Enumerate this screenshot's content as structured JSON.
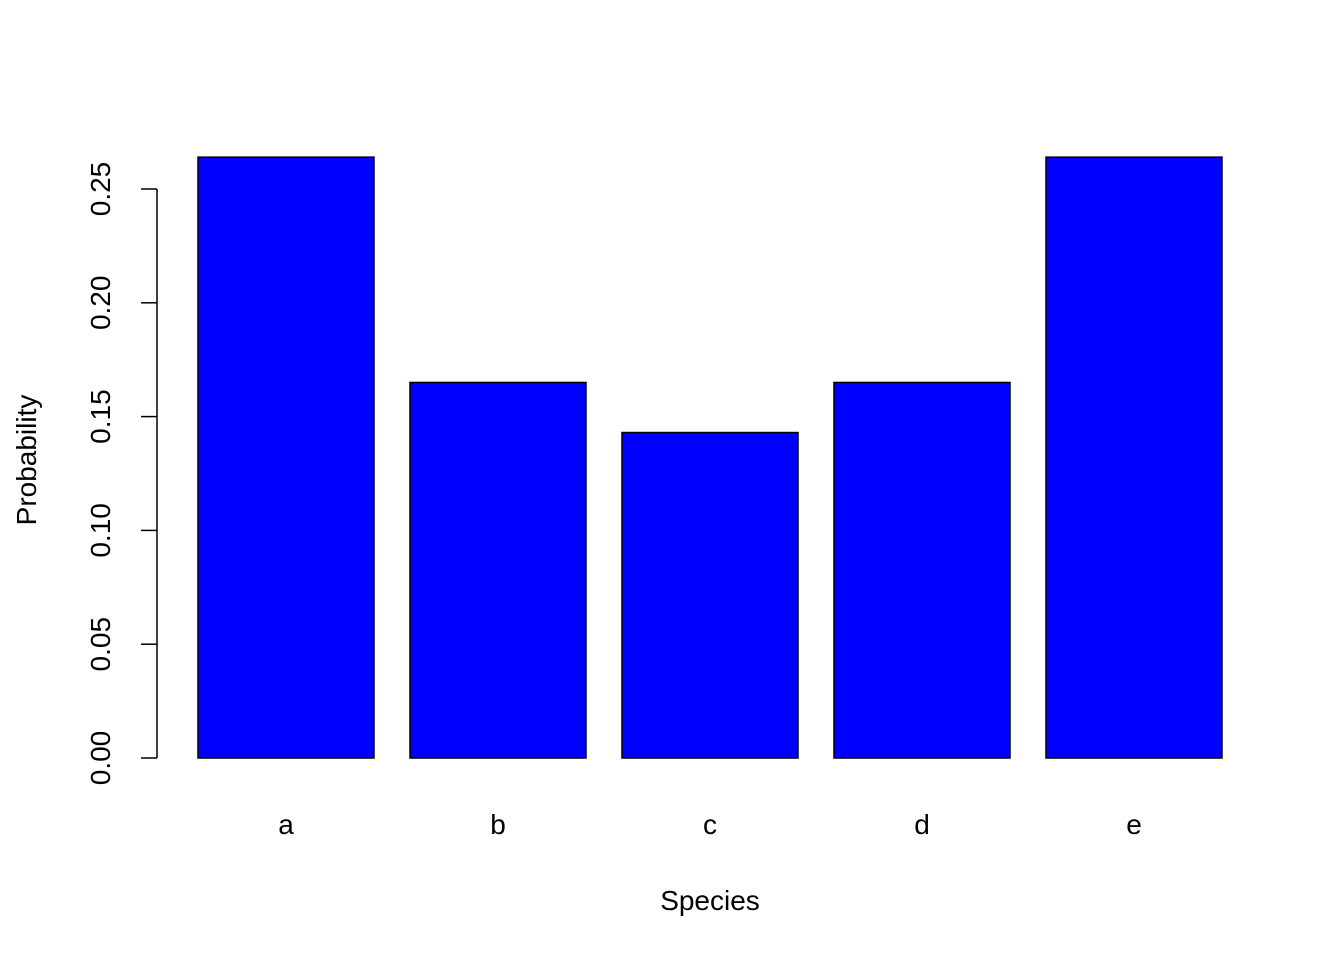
{
  "chart_data": {
    "type": "bar",
    "title": "",
    "xlabel": "Species",
    "ylabel": "Probability",
    "categories": [
      "a",
      "b",
      "c",
      "d",
      "e"
    ],
    "values": [
      0.264,
      0.165,
      0.143,
      0.165,
      0.264
    ],
    "ylim": [
      0,
      0.26
    ],
    "yticks": [
      "0.00",
      "0.05",
      "0.10",
      "0.15",
      "0.20",
      "0.25"
    ],
    "bar_color": "#0000FF",
    "bar_border_color": "#000000",
    "grid": false,
    "legend": "none"
  }
}
